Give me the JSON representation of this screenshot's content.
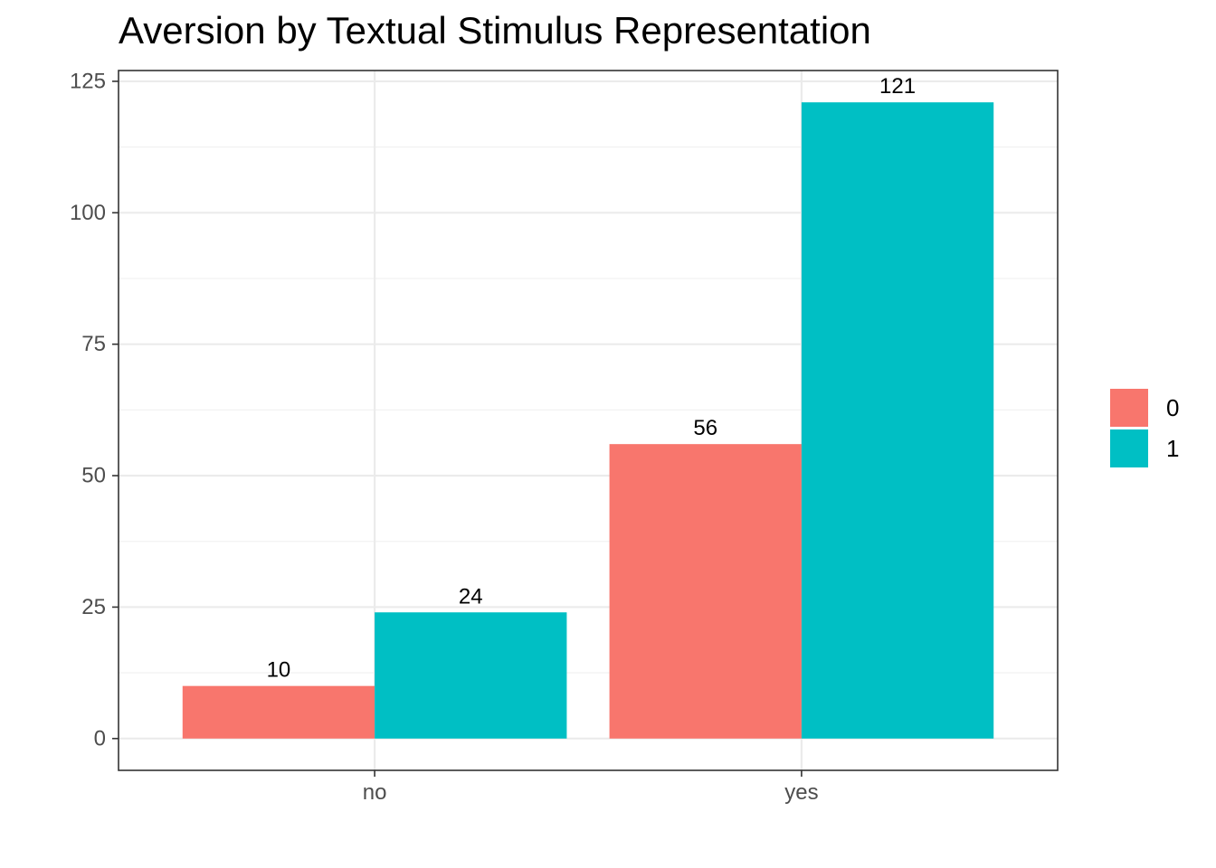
{
  "chart_data": {
    "type": "bar",
    "title": "Aversion by Textual Stimulus Representation",
    "xlabel": "",
    "ylabel": "",
    "categories": [
      "no",
      "yes"
    ],
    "series": [
      {
        "name": "0",
        "color": "#F8766D",
        "values": [
          10,
          56
        ]
      },
      {
        "name": "1",
        "color": "#00BFC4",
        "values": [
          24,
          121
        ]
      }
    ],
    "ylim": [
      -6.05,
      127.05
    ],
    "yticks": [
      0,
      25,
      50,
      75,
      100,
      125
    ],
    "grid": true,
    "legend": "right"
  }
}
